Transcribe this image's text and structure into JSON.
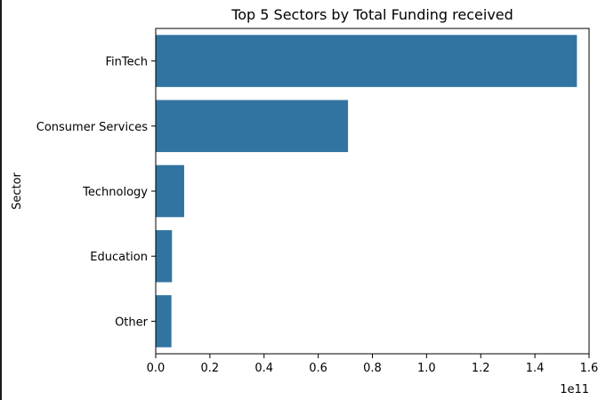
{
  "chart_data": {
    "type": "bar",
    "orientation": "horizontal",
    "title": "Top 5 Sectors by Total Funding received",
    "xlabel": "",
    "ylabel": "Sector",
    "x_offset_label": "1e11",
    "categories": [
      "FinTech",
      "Consumer Services",
      "Technology",
      "Education",
      "Other"
    ],
    "values": [
      1.555,
      0.71,
      0.105,
      0.06,
      0.058
    ],
    "xlim": [
      0,
      1.6
    ],
    "xticks": [
      "0.0",
      "0.2",
      "0.4",
      "0.6",
      "0.8",
      "1.0",
      "1.2",
      "1.4",
      "1.6"
    ],
    "bar_color": "#3274a1",
    "grid": false,
    "legend": "none"
  }
}
